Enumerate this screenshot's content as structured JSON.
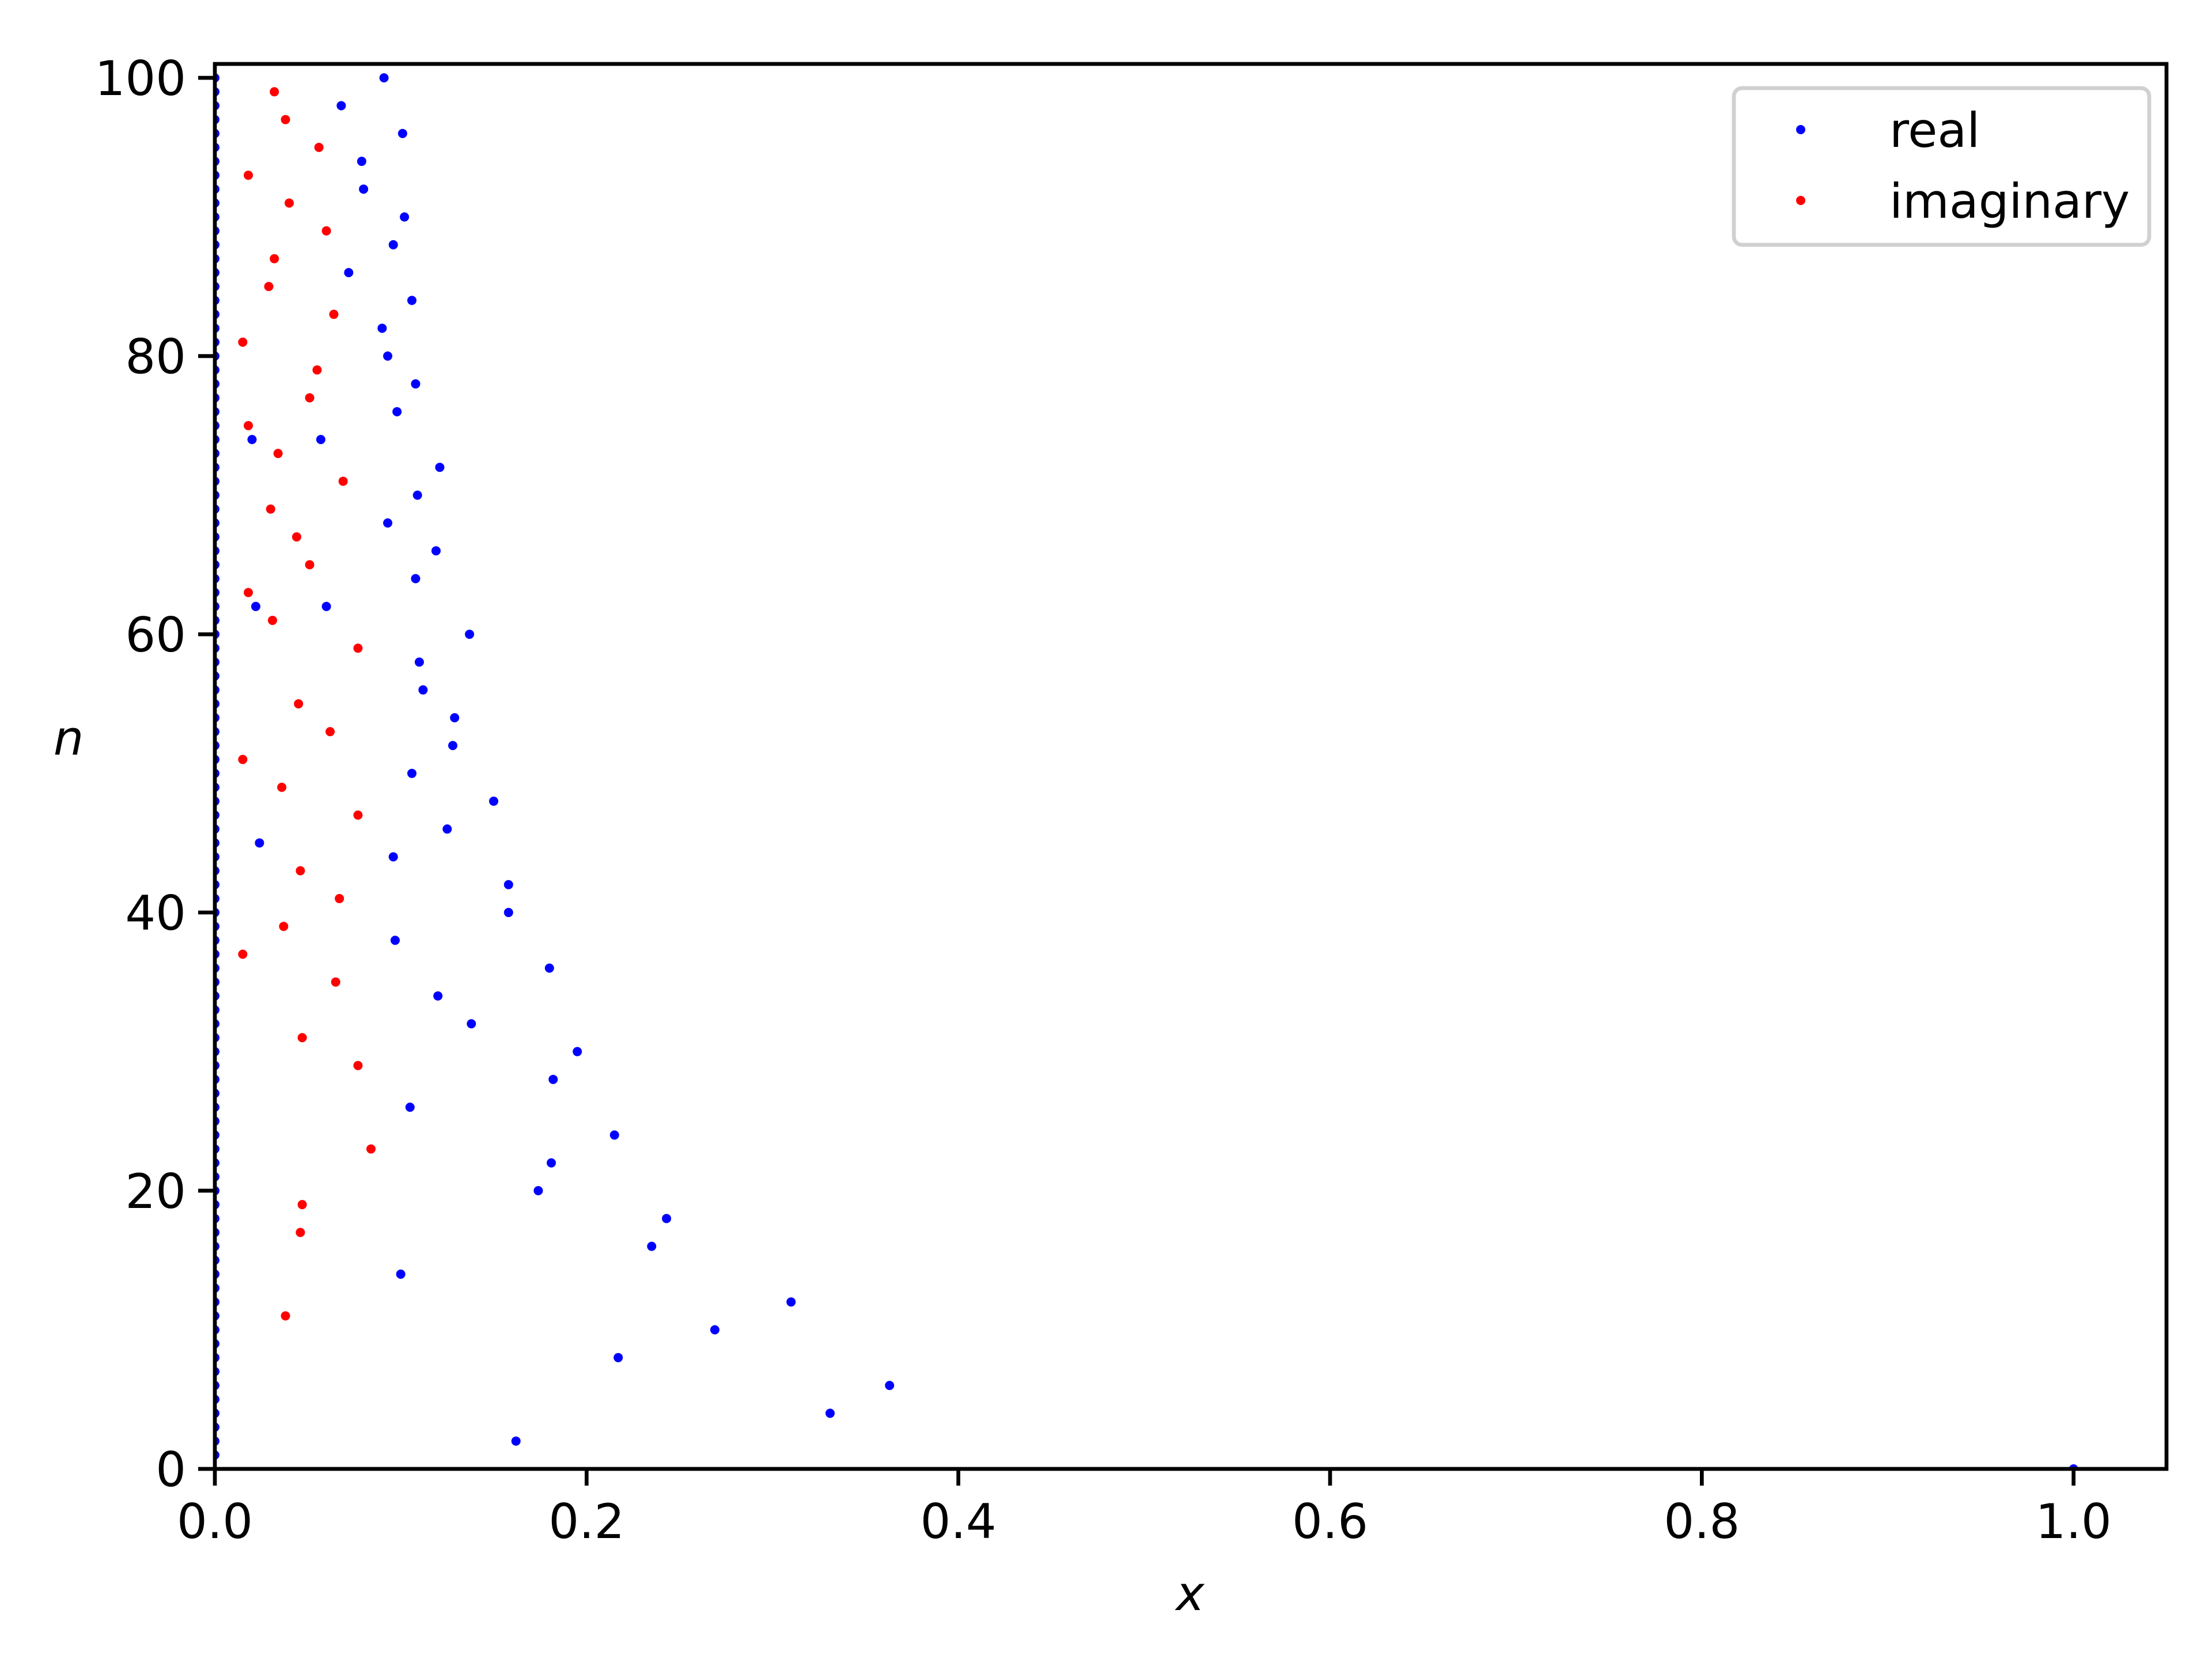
{
  "chart_data": {
    "type": "scatter",
    "xlabel": "x",
    "ylabel": "n",
    "xlim": [
      0,
      1.05
    ],
    "ylim": [
      0,
      101
    ],
    "xticks": [
      {
        "value": 0,
        "label": "0.0"
      },
      0.2,
      0.4,
      0.6,
      0.8,
      {
        "value": 1,
        "label": "1.0"
      }
    ],
    "yticks": [
      0,
      20,
      40,
      60,
      80,
      100
    ],
    "legend": "upper right",
    "series": [
      {
        "name": "real",
        "color": "#0000ff",
        "x": [
          0,
          0,
          0,
          0,
          0,
          0,
          0,
          0,
          0,
          0,
          0,
          0,
          0,
          0,
          0,
          0,
          0,
          0,
          0,
          0,
          0,
          0,
          0,
          0,
          0,
          0,
          0,
          0,
          0,
          0,
          0,
          0,
          0,
          0,
          0,
          0,
          0,
          0,
          0,
          0,
          0,
          0,
          0,
          0,
          0,
          0,
          0,
          0,
          0,
          0,
          0,
          0,
          0,
          0,
          0,
          0,
          0,
          0,
          0,
          0,
          0,
          0,
          0,
          0,
          0,
          0,
          0,
          0,
          0,
          0,
          0,
          0,
          0,
          0,
          0,
          0,
          0,
          0,
          0,
          0,
          0,
          0,
          0,
          0,
          0,
          0,
          0,
          0,
          0,
          0,
          0,
          0,
          0,
          0,
          0,
          0,
          0,
          0,
          0,
          0,
          0.091,
          0.068,
          0.101,
          0.079,
          0.08,
          0.102,
          0.096,
          0.072,
          0.106,
          0.09,
          0.093,
          0.108,
          0.098,
          0.02,
          0.057,
          0.121,
          0.109,
          0.093,
          0.119,
          0.108,
          0.022,
          0.06,
          0.137,
          0.11,
          0.112,
          0.129,
          0.128,
          0.106,
          0.15,
          0.125,
          0.024,
          0.096,
          0.158,
          0.158,
          0.097,
          0.18,
          0.12,
          0.138,
          0.195,
          0.182,
          0.105,
          0.215,
          0.181,
          0.174,
          0.243,
          0.235,
          0.1,
          0.31,
          0.269,
          0.217,
          0.363,
          0.331,
          0.162,
          1.0
        ],
        "values": [
          1,
          2,
          3,
          4,
          5,
          6,
          7,
          8,
          9,
          10,
          11,
          12,
          13,
          14,
          15,
          16,
          17,
          18,
          19,
          20,
          21,
          22,
          23,
          24,
          25,
          26,
          27,
          28,
          29,
          30,
          31,
          32,
          33,
          34,
          35,
          36,
          37,
          38,
          39,
          40,
          41,
          42,
          43,
          44,
          45,
          46,
          47,
          48,
          49,
          50,
          51,
          52,
          53,
          54,
          55,
          56,
          57,
          58,
          59,
          60,
          61,
          62,
          63,
          64,
          65,
          66,
          67,
          68,
          69,
          70,
          71,
          72,
          73,
          74,
          75,
          76,
          77,
          78,
          79,
          80,
          81,
          82,
          83,
          84,
          85,
          86,
          87,
          88,
          89,
          90,
          91,
          92,
          93,
          94,
          95,
          96,
          97,
          98,
          99,
          100,
          100,
          98,
          96,
          94,
          92,
          90,
          88,
          86,
          84,
          82,
          80,
          78,
          76,
          74,
          74,
          72,
          70,
          68,
          66,
          64,
          62,
          62,
          60,
          58,
          56,
          54,
          52,
          50,
          48,
          46,
          45,
          44,
          42,
          40,
          38,
          36,
          34,
          32,
          30,
          28,
          26,
          24,
          22,
          20,
          18,
          16,
          14,
          12,
          10,
          8,
          6,
          4,
          2,
          0
        ]
      },
      {
        "name": "imaginary",
        "color": "#ff0000",
        "x": [
          0.032,
          0.038,
          0.056,
          0.018,
          0.04,
          0.06,
          0.032,
          0.029,
          0.064,
          0.015,
          0.055,
          0.051,
          0.018,
          0.034,
          0.069,
          0.03,
          0.044,
          0.051,
          0.018,
          0.031,
          0.077,
          0.045,
          0.062,
          0.015,
          0.036,
          0.077,
          0.046,
          0.067,
          0.037,
          0.015,
          0.065,
          0.047,
          0.077,
          0.084,
          0.047,
          0.046,
          0.038
        ],
        "values": [
          99,
          97,
          95,
          93,
          91,
          89,
          87,
          85,
          83,
          81,
          79,
          77,
          75,
          73,
          71,
          69,
          67,
          65,
          63,
          61,
          59,
          55,
          53,
          51,
          49,
          47,
          43,
          41,
          39,
          37,
          35,
          31,
          29,
          23,
          19,
          17,
          11
        ]
      }
    ]
  }
}
